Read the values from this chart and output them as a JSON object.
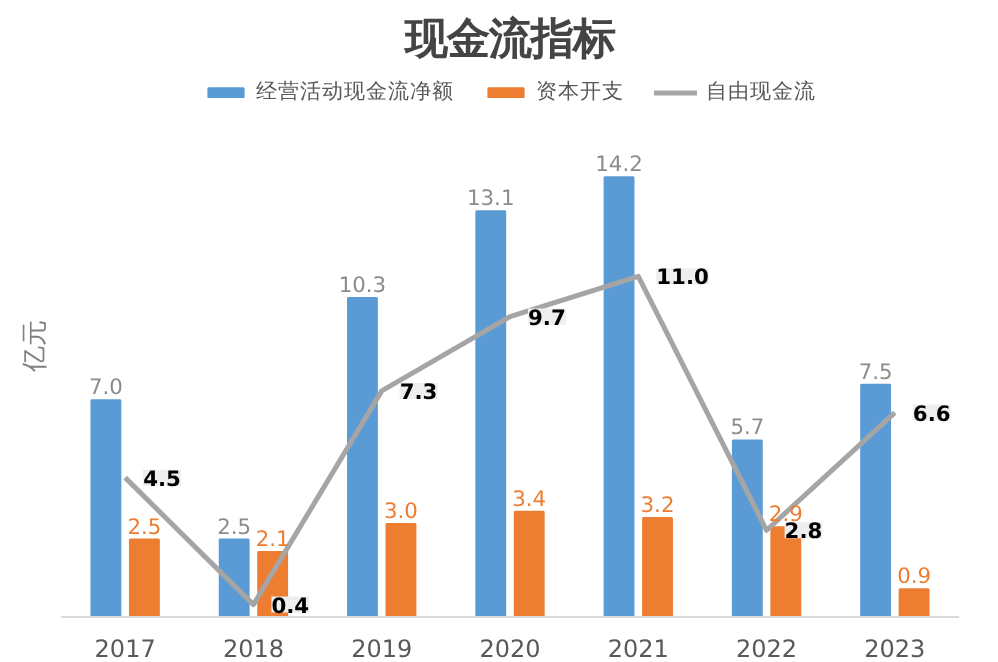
{
  "chart_data": {
    "type": "bar",
    "title": "现金流指标",
    "ylabel": "亿元",
    "categories": [
      "2017",
      "2018",
      "2019",
      "2020",
      "2021",
      "2022",
      "2023"
    ],
    "series": [
      {
        "name": "经营活动现金流净额",
        "color": "#5b9bd5",
        "values": [
          7.0,
          2.5,
          10.3,
          13.1,
          14.2,
          5.7,
          7.5
        ],
        "value_labels": [
          "7.0",
          "2.5",
          "10.3",
          "13.1",
          "14.2",
          "5.7",
          "7.5"
        ]
      },
      {
        "name": "资本开支",
        "color": "#ed7d31",
        "values": [
          2.5,
          2.1,
          3.0,
          3.4,
          3.2,
          2.9,
          0.9
        ],
        "value_labels": [
          "2.5",
          "2.1",
          "3.0",
          "3.4",
          "3.2",
          "2.9",
          "0.9"
        ]
      },
      {
        "name": "自由现金流",
        "type": "line",
        "color": "#a5a5a5",
        "values": [
          4.5,
          0.4,
          7.3,
          9.7,
          11.0,
          2.8,
          6.6
        ],
        "value_labels": [
          "4.5",
          "0.4",
          "7.3",
          "9.7",
          "11.0",
          "2.8",
          "6.6"
        ]
      }
    ],
    "ylim": [
      0,
      17.5
    ],
    "legend": "top",
    "grid": false,
    "tick_labels": "x"
  }
}
